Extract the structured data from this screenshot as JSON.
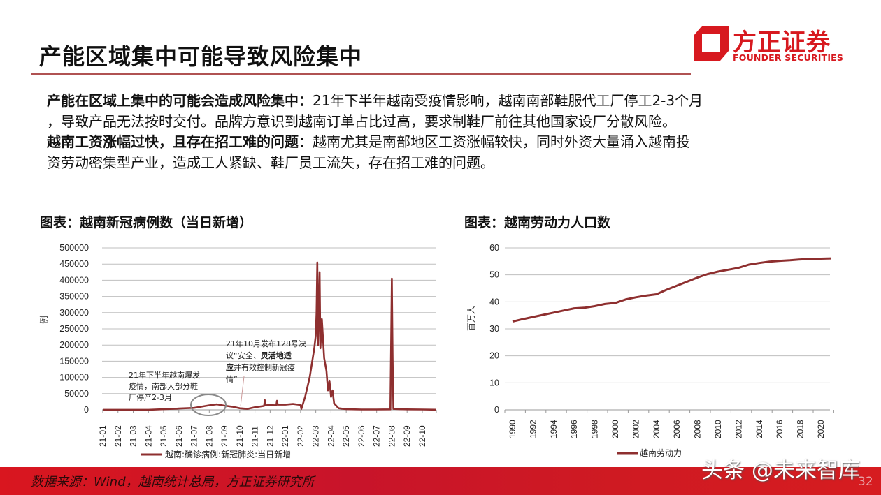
{
  "header": {
    "title": "产能区域集中可能导致风险集中",
    "logo": {
      "cn": "方正证券",
      "en": "FOUNDER SECURITIES",
      "icon": "founder-logo-icon",
      "color": "#d7191f"
    },
    "rule_color": "#b05252"
  },
  "body": {
    "p1_bold": "产能在区域上集中的可能会造成风险集中：",
    "p1_line1": "21年下半年越南受疫情影响，越南南部鞋服代工厂停工2-3个月",
    "p1_line2": "，导致产品无法按时交付。品牌方意识到越南订单占比过高，要求制鞋厂前往其他国家设厂分散风险。",
    "p2_bold": "越南工资涨幅过快，且存在招工难的问题：",
    "p2_line1": "越南尤其是南部地区工资涨幅较快，同时外资大量涌入越南投",
    "p2_line2": "资劳动密集型产业，造成工人紧缺、鞋厂员工流失，存在招工难的问题。"
  },
  "chart_data": [
    {
      "type": "line",
      "title": "图表：越南新冠病例数（当日新增）",
      "xlabel": "",
      "ylabel": "例",
      "ylim": [
        0,
        500000
      ],
      "yticks": [
        0,
        50000,
        100000,
        150000,
        200000,
        250000,
        300000,
        350000,
        400000,
        450000,
        500000
      ],
      "ytick_labels": [
        "0",
        "50000",
        "100000",
        "150000",
        "200000",
        "250000",
        "300000",
        "350000",
        "400000",
        "450000",
        "500000"
      ],
      "categories": [
        "21-01",
        "21-02",
        "21-03",
        "21-04",
        "21-05",
        "21-06",
        "21-07",
        "21-08",
        "21-09",
        "21-10",
        "21-11",
        "21-12",
        "22-01",
        "22-02",
        "22-03",
        "22-04",
        "22-05",
        "22-06",
        "22-07",
        "22-08",
        "22-09",
        "22-10"
      ],
      "grid": true,
      "legend_position": "bottom",
      "series": [
        {
          "name": "越南:确诊病例:新冠肺炎:当日新增",
          "color": "#8e2f2f",
          "points": [
            [
              "21-01",
              200
            ],
            [
              "21-02",
              300
            ],
            [
              "21-03",
              200
            ],
            [
              "21-04",
              300
            ],
            [
              "21-05",
              2000
            ],
            [
              "21-06",
              4000
            ],
            [
              "21-07",
              6000
            ],
            [
              "21-07.5",
              10000
            ],
            [
              "21-08",
              14000
            ],
            [
              "21-08.5",
              17000
            ],
            [
              "21-09",
              13000
            ],
            [
              "21-09.5",
              10000
            ],
            [
              "21-10",
              5000
            ],
            [
              "21-10.5",
              3000
            ],
            [
              "21-11",
              8000
            ],
            [
              "21-11.6",
              12000
            ],
            [
              "21-11.65",
              30000
            ],
            [
              "21-11.7",
              14000
            ],
            [
              "21-12",
              15000
            ],
            [
              "21-12.4",
              14000
            ],
            [
              "21-12.45",
              28000
            ],
            [
              "21-12.5",
              16000
            ],
            [
              "22-01",
              16000
            ],
            [
              "22-01.5",
              18000
            ],
            [
              "22-02",
              15000
            ],
            [
              "22-02.05",
              3000
            ],
            [
              "22-02.3",
              40000
            ],
            [
              "22-02.6",
              100000
            ],
            [
              "22-02.9",
              190000
            ],
            [
              "22-03.0",
              230000
            ],
            [
              "22-03.05",
              300000
            ],
            [
              "22-03.1",
              455000
            ],
            [
              "22-03.15",
              200000
            ],
            [
              "22-03.25",
              425000
            ],
            [
              "22-03.3",
              190000
            ],
            [
              "22-03.4",
              280000
            ],
            [
              "22-03.55",
              160000
            ],
            [
              "22-03.7",
              120000
            ],
            [
              "22-03.8",
              60000
            ],
            [
              "22-03.9",
              90000
            ],
            [
              "22-04.0",
              40000
            ],
            [
              "22-04.1",
              60000
            ],
            [
              "22-04.2",
              20000
            ],
            [
              "22-04.5",
              5000
            ],
            [
              "22-05",
              2000
            ],
            [
              "22-06",
              1000
            ],
            [
              "22-07",
              1000
            ],
            [
              "22-07.9",
              1500
            ],
            [
              "22-08.0",
              405000
            ],
            [
              "22-08.05",
              160000
            ],
            [
              "22-08.1",
              3000
            ],
            [
              "22-08.5",
              2000
            ],
            [
              "22-09",
              1500
            ],
            [
              "22-10",
              1000
            ],
            [
              "22-10.9",
              500
            ]
          ]
        }
      ],
      "annotations": [
        {
          "text_lines": [
            "21年下半年越南爆发",
            "疫情，南部大部分鞋",
            "厂停产2-3月"
          ],
          "target": "21-07 ~ 21-09 (circled)"
        },
        {
          "text_lines": [
            "21年10月发布128号决",
            "议“安全、灵活地适",
            "应并有效控制新冠疫",
            "情”"
          ],
          "bold_part": "灵活地适应",
          "target": "21-10"
        }
      ]
    },
    {
      "type": "line",
      "title": "图表：越南劳动力人口数",
      "xlabel": "",
      "ylabel": "百万人",
      "ylim": [
        0,
        60
      ],
      "yticks": [
        0,
        10,
        20,
        30,
        40,
        50,
        60
      ],
      "x": [
        1990,
        1991,
        1992,
        1993,
        1994,
        1995,
        1996,
        1997,
        1998,
        1999,
        2000,
        2001,
        2002,
        2003,
        2004,
        2005,
        2006,
        2007,
        2008,
        2009,
        2010,
        2011,
        2012,
        2013,
        2014,
        2015,
        2016,
        2017,
        2018,
        2019,
        2020,
        2021
      ],
      "xtick_labels": [
        "1990",
        "1992",
        "1994",
        "1996",
        "1998",
        "2000",
        "2002",
        "2004",
        "2006",
        "2008",
        "2010",
        "2012",
        "2014",
        "2016",
        "2018",
        "2020"
      ],
      "grid": true,
      "legend_position": "bottom",
      "series": [
        {
          "name": "越南劳动力",
          "color": "#8e2f2f",
          "values": [
            32.7,
            33.6,
            34.4,
            35.2,
            36.0,
            36.8,
            37.6,
            37.8,
            38.4,
            39.2,
            39.6,
            40.9,
            41.7,
            42.3,
            42.8,
            44.5,
            46.0,
            47.5,
            49.0,
            50.3,
            51.2,
            51.9,
            52.6,
            53.8,
            54.4,
            54.9,
            55.2,
            55.4,
            55.7,
            55.9,
            56.0,
            56.1
          ]
        }
      ]
    }
  ],
  "charts": {
    "covid": {
      "title": "图表：越南新冠病例数（当日新增）",
      "ylabel": "例",
      "legend": "越南:确诊病例:新冠肺炎:当日新增",
      "ann1": [
        "21年下半年越南爆发",
        "疫情，南部大部分鞋",
        "厂停产2-3月"
      ],
      "ann2_l1": "21年10月发布128号决",
      "ann2_l2a": "议“安全、",
      "ann2_l2b": "灵活地适",
      "ann2_l3a": "应",
      "ann2_l3b": "并有效控制新冠疫",
      "ann2_l4": "情”"
    },
    "labor": {
      "title": "图表：越南劳动力人口数",
      "ylabel": "百万人",
      "legend": "越南劳动力"
    }
  },
  "footer": {
    "source": "数据来源：Wind，越南统计总局，方正证券研究所",
    "watermark": "头条 @未来智库",
    "page_number": "32",
    "bg_color": "#d7191f"
  }
}
